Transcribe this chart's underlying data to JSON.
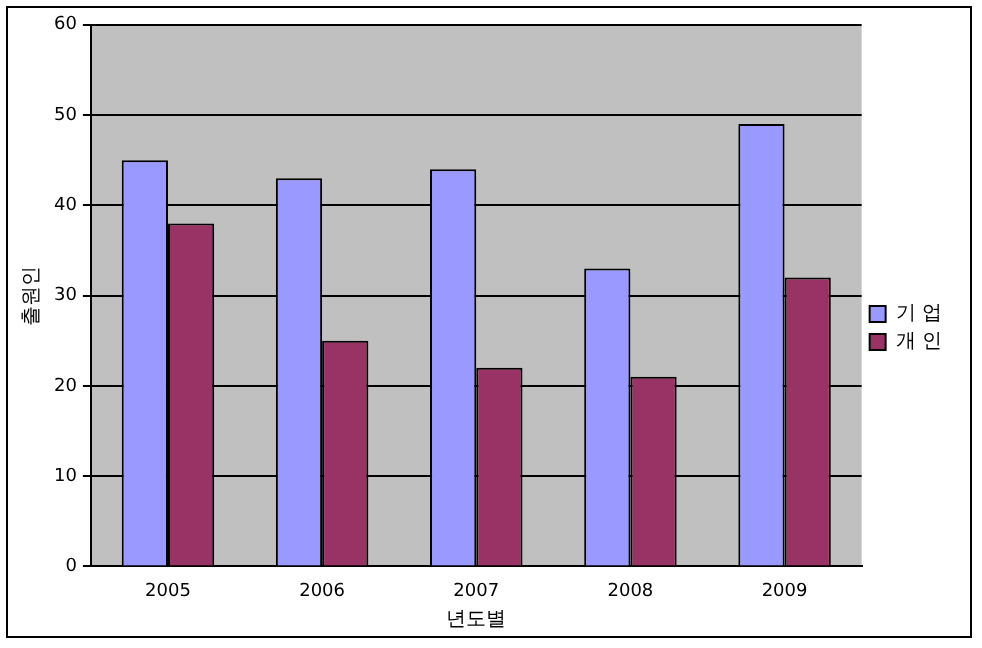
{
  "chart_data": {
    "type": "bar",
    "xlabel": "년도별",
    "ylabel": "출원인",
    "categories": [
      "2005",
      "2006",
      "2007",
      "2008",
      "2009"
    ],
    "series": [
      {
        "name": "기 업",
        "color": "#9999ff",
        "values": [
          45,
          43,
          44,
          33,
          49
        ]
      },
      {
        "name": "개 인",
        "color": "#993366",
        "values": [
          38,
          25,
          22,
          21,
          32
        ]
      }
    ],
    "ylim": [
      0,
      60
    ],
    "yticks": [
      0,
      10,
      20,
      30,
      40,
      50,
      60
    ],
    "grid": "y",
    "legend": "right"
  }
}
